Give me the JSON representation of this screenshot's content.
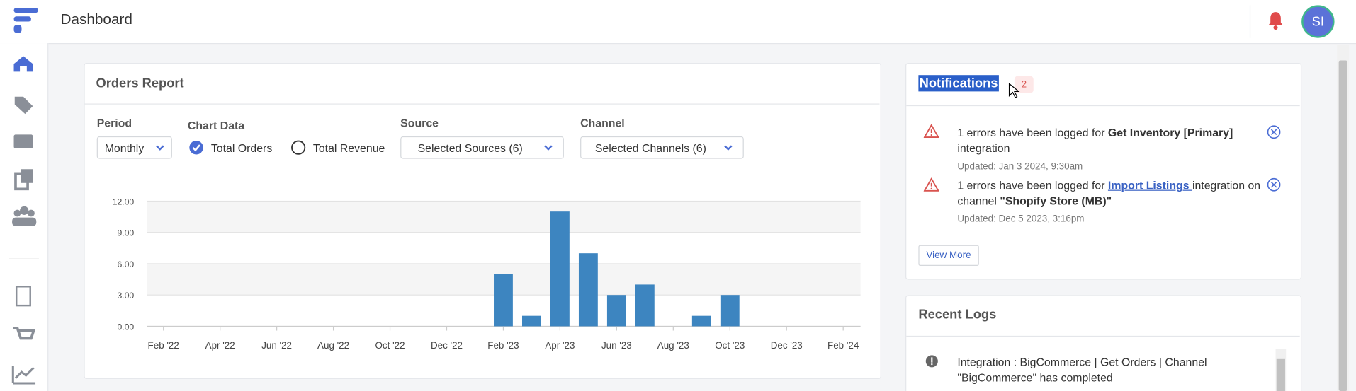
{
  "header": {
    "title": "Dashboard",
    "avatar": "SI"
  },
  "orders_report": {
    "title": "Orders Report",
    "period_label": "Period",
    "period_value": "Monthly",
    "chart_data_label": "Chart Data",
    "options": [
      "Total Orders",
      "Total Revenue"
    ],
    "source_label": "Source",
    "source_value": "Selected Sources (6)",
    "channel_label": "Channel",
    "channel_value": "Selected Channels (6)"
  },
  "chart_data": {
    "type": "bar",
    "categories": [
      "Feb '22",
      null,
      "Apr '22",
      null,
      "Jun '22",
      null,
      "Aug '22",
      null,
      "Oct '22",
      null,
      "Dec '22",
      null,
      "Feb '23",
      null,
      "Apr '23",
      null,
      "Jun '23",
      null,
      "Aug '23",
      null,
      "Oct '23",
      null,
      "Dec '23",
      null,
      "Feb '24"
    ],
    "values": [
      0,
      0,
      0,
      0,
      0,
      0,
      0,
      0,
      0,
      0,
      0,
      0,
      5,
      1,
      11,
      7,
      3,
      4,
      0,
      1,
      3,
      0,
      0,
      0,
      0
    ],
    "color": "#3d85c0",
    "ylim": [
      0,
      12
    ],
    "yticks": [
      {
        "value": 0,
        "label": "0.00"
      },
      {
        "value": 3,
        "label": "3.00"
      },
      {
        "value": 6,
        "label": "6.00"
      },
      {
        "value": 9,
        "label": "9.00"
      },
      {
        "value": 12,
        "label": "12.00"
      }
    ],
    "grid": true
  },
  "notifications": {
    "title": "Notifications",
    "count": 2,
    "items": [
      {
        "prefix": "1 errors have been logged for ",
        "bold": "Get Inventory [Primary]",
        "suffix": " integration",
        "updated": "Updated: Jan 3 2024, 9:30am"
      },
      {
        "prefix": "1 errors have been logged for ",
        "link": "Import Listings ",
        "middle": "integration on channel ",
        "bold": "\"Shopify Store (MB)\"",
        "updated": "Updated: Dec 5 2023, 3:16pm"
      }
    ],
    "view_more": "View More"
  },
  "recent_logs": {
    "title": "Recent Logs",
    "items": [
      "Integration : BigCommerce | Get Orders | Channel \"BigCommerce\" has completed"
    ]
  }
}
